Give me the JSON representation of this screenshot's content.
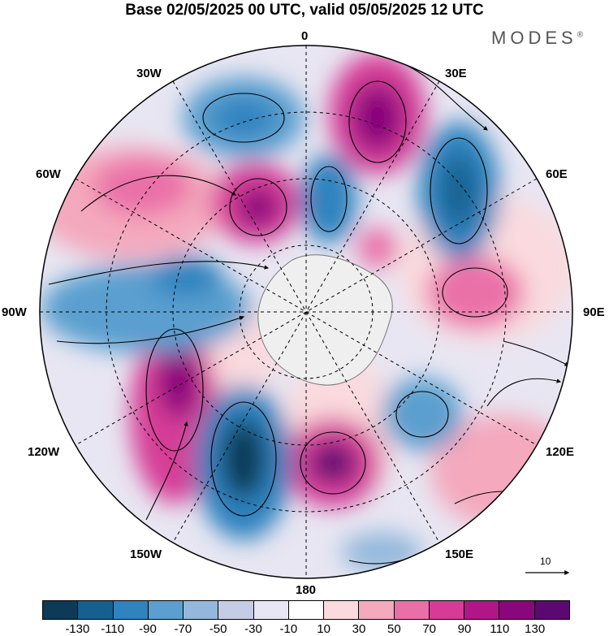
{
  "title": "Base 02/05/2025 00 UTC, valid 05/05/2025 12 UTC",
  "brand": "MODES",
  "brand_mark": "®",
  "longitude_labels": {
    "top": "0",
    "lon_30e": "30E",
    "lon_60e": "60E",
    "lon_90e": "90E",
    "lon_120e": "120E",
    "lon_150e": "150E",
    "bottom": "180",
    "lon_150w": "150W",
    "lon_120w": "120W",
    "lon_90w": "90W",
    "lon_60w": "60W",
    "lon_30w": "30W"
  },
  "reference_vector": {
    "label": "10"
  },
  "colorbar": {
    "colors": [
      "#0d3a57",
      "#15608f",
      "#2f83bf",
      "#5a9fcf",
      "#93b8dc",
      "#c5cde6",
      "#e8e6f2",
      "#ffffff",
      "#fadade",
      "#f4a9bd",
      "#ea6fa8",
      "#d63c97",
      "#b01687",
      "#8a067c",
      "#5c0872"
    ],
    "tick_labels": [
      "-130",
      "-110",
      "-90",
      "-70",
      "-50",
      "-30",
      "-10",
      "10",
      "30",
      "50",
      "70",
      "90",
      "110",
      "130"
    ]
  },
  "map": {
    "projection": "polar stereographic, south pole",
    "background_color": "#e8e6f2"
  }
}
